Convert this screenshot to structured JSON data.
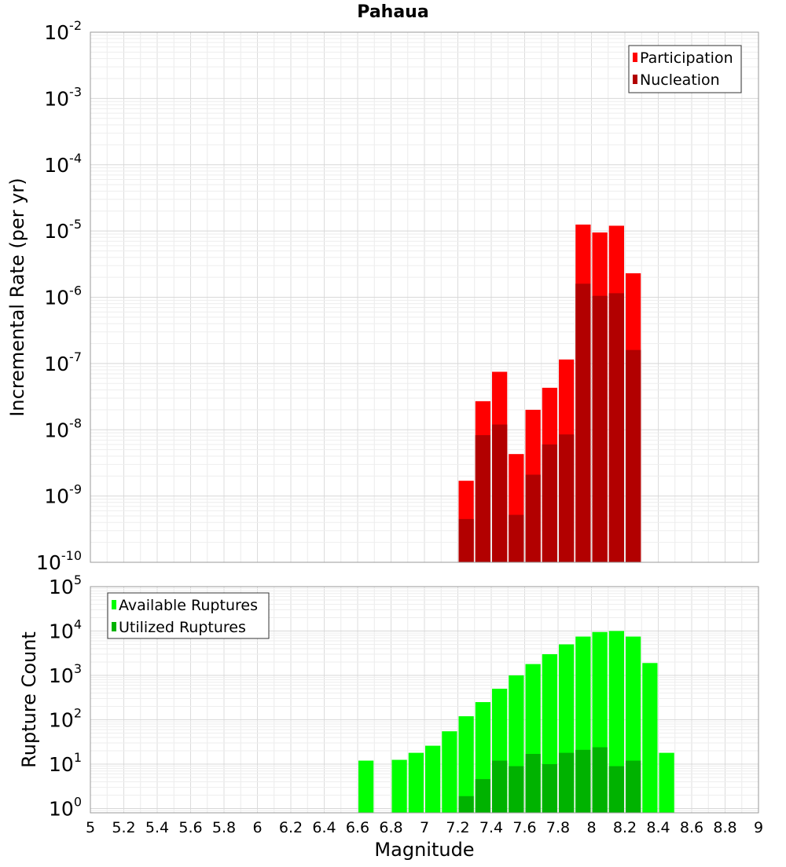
{
  "figure": {
    "title": "Pahaua",
    "x_axis_label": "Magnitude"
  },
  "chart_data": [
    {
      "type": "bar",
      "title": "Pahaua",
      "xlabel": "Magnitude",
      "ylabel": "Incremental Rate (per yr)",
      "yscale": "log",
      "xlim": [
        5,
        9
      ],
      "ylim": [
        1e-10,
        0.01
      ],
      "grid": true,
      "legend_position": "top-right",
      "x": [
        7.25,
        7.35,
        7.45,
        7.55,
        7.65,
        7.75,
        7.85,
        7.95,
        8.05,
        8.15,
        8.25
      ],
      "series": [
        {
          "name": "Participation",
          "color": "#ff0000",
          "values": [
            1.7e-09,
            2.7e-08,
            7.5e-08,
            4.3e-09,
            2e-08,
            4.3e-08,
            1.15e-07,
            1.25e-05,
            9.5e-06,
            1.2e-05,
            2.3e-06
          ]
        },
        {
          "name": "Nucleation",
          "color": "#b20000",
          "values": [
            4.5e-10,
            8.3e-09,
            1.2e-08,
            5.2e-10,
            2.1e-09,
            6e-09,
            8.5e-09,
            1.6e-06,
            1.05e-06,
            1.15e-06,
            1.6e-07
          ]
        }
      ],
      "y_ticks": [
        {
          "base": "10",
          "exp": "-10"
        },
        {
          "base": "10",
          "exp": "-9"
        },
        {
          "base": "10",
          "exp": "-8"
        },
        {
          "base": "10",
          "exp": "-7"
        },
        {
          "base": "10",
          "exp": "-6"
        },
        {
          "base": "10",
          "exp": "-5"
        },
        {
          "base": "10",
          "exp": "-4"
        },
        {
          "base": "10",
          "exp": "-3"
        },
        {
          "base": "10",
          "exp": "-2"
        }
      ]
    },
    {
      "type": "bar",
      "xlabel": "Magnitude",
      "ylabel": "Rupture Count",
      "yscale": "log",
      "xlim": [
        5,
        9
      ],
      "ylim": [
        0.8,
        100000.0
      ],
      "grid": true,
      "legend_position": "top-left",
      "x_ticks": [
        "5",
        "5.2",
        "5.4",
        "5.6",
        "5.8",
        "6",
        "6.2",
        "6.4",
        "6.6",
        "6.8",
        "7",
        "7.2",
        "7.4",
        "7.6",
        "7.8",
        "8",
        "8.2",
        "8.4",
        "8.6",
        "8.8",
        "9"
      ],
      "x": [
        6.65,
        6.85,
        6.95,
        7.05,
        7.15,
        7.25,
        7.35,
        7.45,
        7.55,
        7.65,
        7.75,
        7.85,
        7.95,
        8.05,
        8.15,
        8.25,
        8.35,
        8.45
      ],
      "series": [
        {
          "name": "Available Ruptures",
          "color": "#00ff00",
          "values": [
            12,
            12.5,
            18,
            26,
            55,
            120,
            250,
            500,
            1000,
            1800,
            3000,
            5000,
            7500,
            9500,
            10000,
            7500,
            1900,
            18
          ]
        },
        {
          "name": "Utilized Ruptures",
          "color": "#00b200",
          "values": [
            0,
            0,
            0,
            0,
            0,
            1.9,
            4.6,
            12,
            9,
            17,
            10,
            18,
            21,
            24,
            9,
            12,
            0,
            0
          ]
        }
      ],
      "y_ticks": [
        {
          "base": "10",
          "exp": "0"
        },
        {
          "base": "10",
          "exp": "1"
        },
        {
          "base": "10",
          "exp": "2"
        },
        {
          "base": "10",
          "exp": "3"
        },
        {
          "base": "10",
          "exp": "4"
        },
        {
          "base": "10",
          "exp": "5"
        }
      ]
    }
  ]
}
